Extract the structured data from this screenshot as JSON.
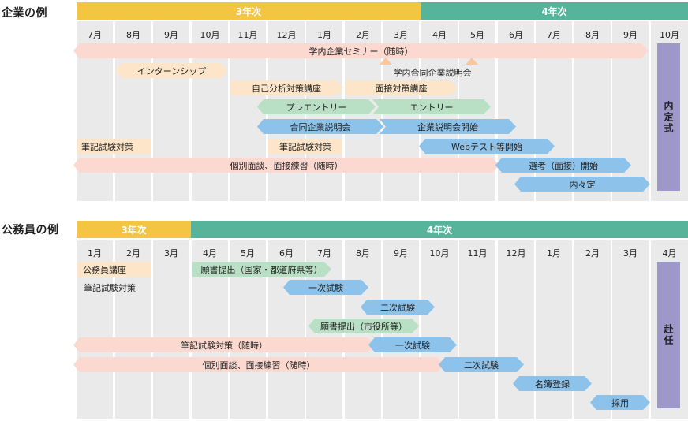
{
  "corporate": {
    "title": "企業の例",
    "year1": "3年次",
    "year2": "4年次",
    "months": [
      "7月",
      "8月",
      "9月",
      "10月",
      "11月",
      "12月",
      "1月",
      "2月",
      "3月",
      "4月",
      "5月",
      "6月",
      "7月",
      "8月",
      "9月",
      "10月"
    ],
    "bars": {
      "seminar": "学内企業セミナー（随時）",
      "internship": "インターンシップ",
      "joint_briefing_campus": "学内合同企業説明会",
      "self_analysis": "自己分析対策講座",
      "interview_course": "面接対策講座",
      "pre_entry": "プレエントリー",
      "entry": "エントリー",
      "joint_briefing": "合同企業説明会",
      "company_briefing_start": "企業説明会開始",
      "written_test_1": "筆記試験対策",
      "written_test_2": "筆記試験対策",
      "web_test_start": "Webテスト等開始",
      "individual_interview": "個別面談、面接練習（随時）",
      "selection_start": "選考（面接）開始",
      "informal_offer": "内々定",
      "ceremony": "内定式"
    },
    "colors": {
      "year1": "#f3c540",
      "year2": "#55b49a"
    }
  },
  "public": {
    "title": "公務員の例",
    "year1": "3年次",
    "year2": "4年次",
    "months": [
      "1月",
      "2月",
      "3月",
      "4月",
      "5月",
      "6月",
      "7月",
      "8月",
      "9月",
      "10月",
      "11月",
      "12月",
      "1月",
      "2月",
      "3月",
      "4月"
    ],
    "bars": {
      "civil_course": "公務員講座",
      "written_prep": "筆記試験対策",
      "application_national": "願書提出（国家・都道府県等）",
      "first_exam_1": "一次試験",
      "second_exam_1": "二次試験",
      "application_city": "願書提出（市役所等）",
      "written_prep_ongoing": "筆記試験対策（随時）",
      "first_exam_2": "一次試験",
      "individual_interview": "個別面談、面接練習（随時）",
      "second_exam_2": "二次試験",
      "list_registration": "名簿登録",
      "hiring": "採用",
      "assignment": "赴任"
    },
    "colors": {
      "year1": "#f3c540",
      "year2": "#55b49a"
    }
  }
}
